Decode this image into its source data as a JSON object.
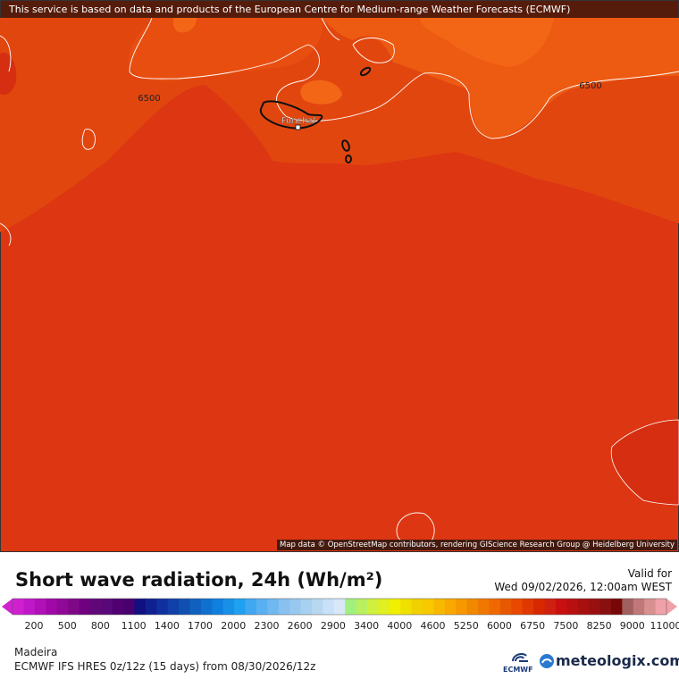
{
  "map": {
    "notice": "This service is based on data and products of the European Centre for Medium-range Weather Forecasts (ECMWF)",
    "city": "Funchal",
    "contour_labels": [
      "6500",
      "6500"
    ],
    "attribution": "Map data © OpenStreetMap contributors, rendering GIScience Research Group @ Heidelberg University"
  },
  "legend": {
    "title": "Short wave radiation, 24h (Wh/m²)",
    "valid_label": "Valid for",
    "valid_time": "Wed 09/02/2026, 12:00am WEST",
    "ticks": [
      200,
      500,
      800,
      1100,
      1400,
      1700,
      2000,
      2300,
      2600,
      2900,
      3400,
      4000,
      4600,
      5250,
      6000,
      6750,
      7500,
      8250,
      9000,
      11000
    ],
    "colors": [
      "#d020d0",
      "#c018c8",
      "#b010b8",
      "#a008a8",
      "#900898",
      "#800888",
      "#700080",
      "#600878",
      "#580878",
      "#500070",
      "#480070",
      "#101080",
      "#102090",
      "#1030a0",
      "#1040a8",
      "#1050b0",
      "#1060c0",
      "#1070d0",
      "#1080e0",
      "#1890e8",
      "#20a0f0",
      "#40a8f0",
      "#58b0f0",
      "#70b8f0",
      "#88c0f0",
      "#98c8f0",
      "#a8d0f0",
      "#b8d8f0",
      "#c8e0f8",
      "#d8e8f8",
      "#a0f080",
      "#b8f060",
      "#d0f040",
      "#e0f020",
      "#f0f000",
      "#f0e000",
      "#f0d000",
      "#f8c800",
      "#f8b800",
      "#f8a800",
      "#f89800",
      "#f08800",
      "#f07800",
      "#f06800",
      "#e85800",
      "#e84800",
      "#e03800",
      "#d82800",
      "#d02010",
      "#c81010",
      "#b81010",
      "#a81010",
      "#981010",
      "#881010",
      "#780808",
      "#a06060",
      "#c07878",
      "#d89090",
      "#f0a0a8"
    ]
  },
  "footer": {
    "region": "Madeira",
    "model": "ECMWF IFS HRES 0z/12z (15 days) from 08/30/2026/12z",
    "logo_text": "ECMWF",
    "brand": "meteologix.com"
  }
}
